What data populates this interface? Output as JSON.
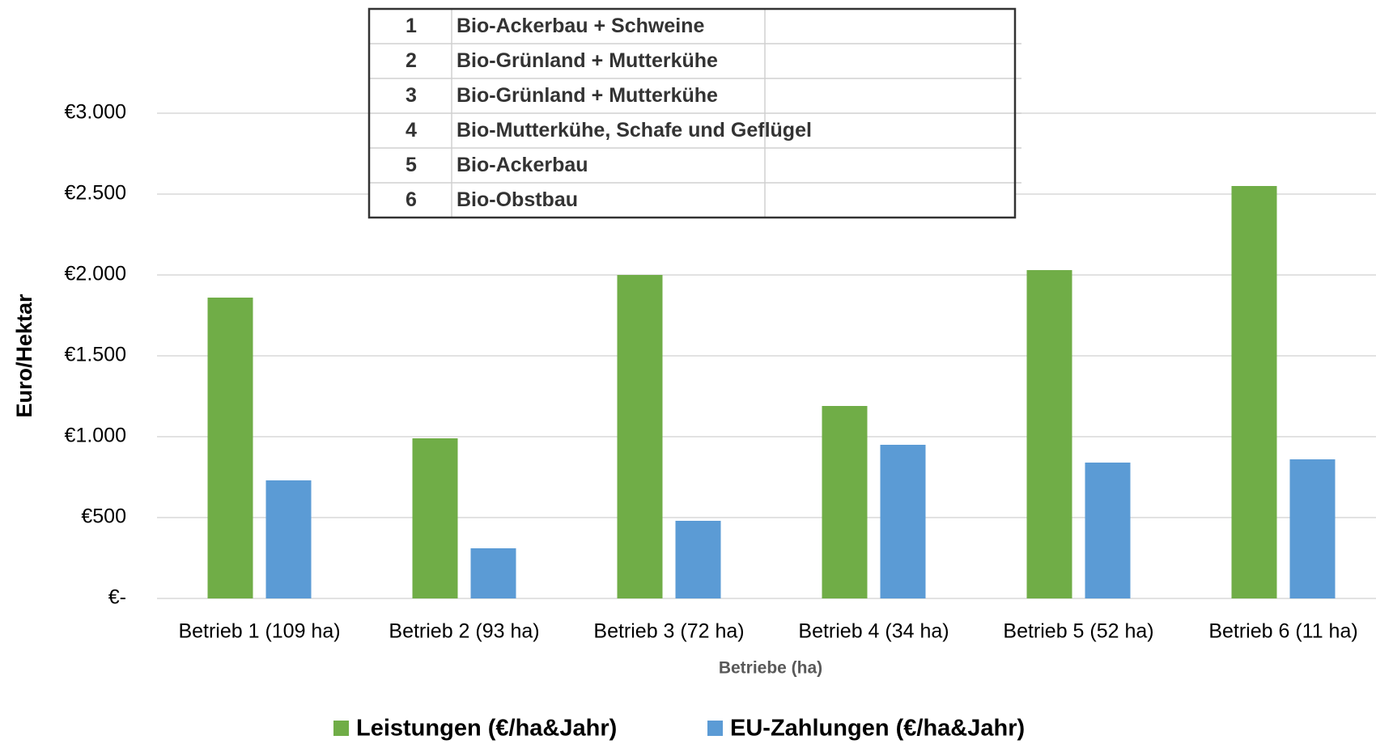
{
  "chart_data": {
    "type": "bar",
    "x_label": "Betriebe (ha)",
    "y_label": "Euro/Hektar",
    "categories": [
      "Betrieb 1 (109 ha)",
      "Betrieb 2 (93 ha)",
      "Betrieb 3 (72 ha)",
      "Betrieb 4 (34 ha)",
      "Betrieb 5 (52 ha)",
      "Betrieb 6 (11 ha)"
    ],
    "series": [
      {
        "name": "Leistungen (€/ha&Jahr)",
        "color": "#70ad47",
        "values": [
          1860,
          990,
          2000,
          1190,
          2030,
          2550
        ]
      },
      {
        "name": "EU-Zahlungen (€/ha&Jahr)",
        "color": "#5b9bd5",
        "values": [
          730,
          310,
          480,
          950,
          840,
          860
        ]
      }
    ],
    "ylim": [
      0,
      3000
    ],
    "yticks": [
      {
        "value": 0,
        "label": "€-"
      },
      {
        "value": 500,
        "label": "€500"
      },
      {
        "value": 1000,
        "label": "€1.000"
      },
      {
        "value": 1500,
        "label": "€1.500"
      },
      {
        "value": 2000,
        "label": "€2.000"
      },
      {
        "value": 2500,
        "label": "€2.500"
      },
      {
        "value": 3000,
        "label": "€3.000"
      }
    ],
    "grid": true,
    "legend": "bottom",
    "table": {
      "rows": [
        [
          "1",
          "Bio-Ackerbau + Schweine"
        ],
        [
          "2",
          "Bio-Grünland + Mutterkühe"
        ],
        [
          "3",
          "Bio-Grünland + Mutterkühe"
        ],
        [
          "4",
          "Bio-Mutterkühe, Schafe und Geflügel"
        ],
        [
          "5",
          "Bio-Ackerbau"
        ],
        [
          "6",
          "Bio-Obstbau"
        ]
      ]
    }
  }
}
